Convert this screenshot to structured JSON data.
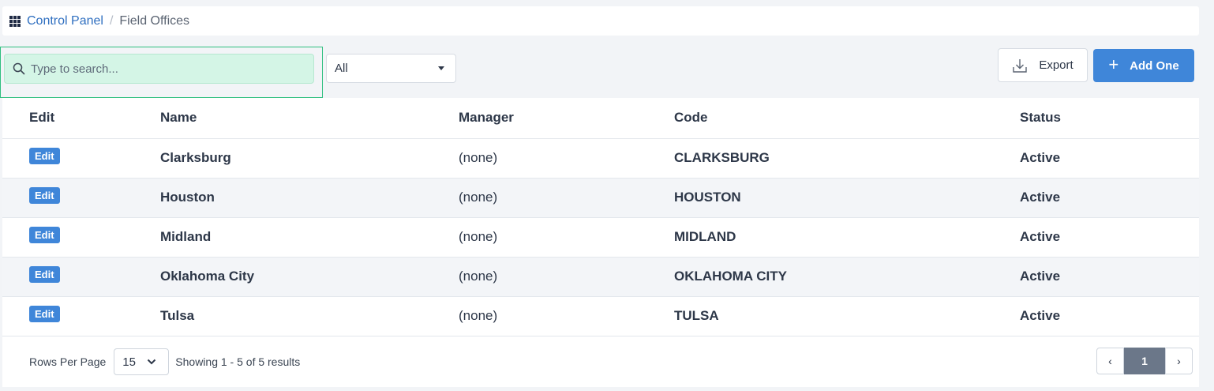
{
  "breadcrumb": {
    "root": "Control Panel",
    "separator": "/",
    "current": "Field Offices"
  },
  "search": {
    "placeholder": "Type to search...",
    "value": ""
  },
  "filter": {
    "selected": "All"
  },
  "toolbar": {
    "export_label": "Export",
    "add_label": "Add One"
  },
  "table": {
    "columns": [
      "Edit",
      "Name",
      "Manager",
      "Code",
      "Status"
    ],
    "edit_label": "Edit",
    "rows": [
      {
        "name": "Clarksburg",
        "manager": "(none)",
        "code": "CLARKSBURG",
        "status": "Active"
      },
      {
        "name": "Houston",
        "manager": "(none)",
        "code": "HOUSTON",
        "status": "Active"
      },
      {
        "name": "Midland",
        "manager": "(none)",
        "code": "MIDLAND",
        "status": "Active"
      },
      {
        "name": "Oklahoma City",
        "manager": "(none)",
        "code": "OKLAHOMA CITY",
        "status": "Active"
      },
      {
        "name": "Tulsa",
        "manager": "(none)",
        "code": "TULSA",
        "status": "Active"
      }
    ]
  },
  "footer": {
    "rows_per_page_label": "Rows Per Page",
    "rows_per_page_value": "15",
    "showing_text": "Showing 1 - 5 of 5 results",
    "current_page": "1",
    "prev_symbol": "‹",
    "next_symbol": "›"
  },
  "colors": {
    "accent": "#3f86d9",
    "search_highlight": "#d4f5e6",
    "pager_active": "#6b7789"
  },
  "icons": [
    "grid-icon",
    "search-icon",
    "caret-down-icon",
    "download-icon",
    "plus-icon",
    "chevron-down-icon",
    "chevron-left-icon",
    "chevron-right-icon"
  ]
}
